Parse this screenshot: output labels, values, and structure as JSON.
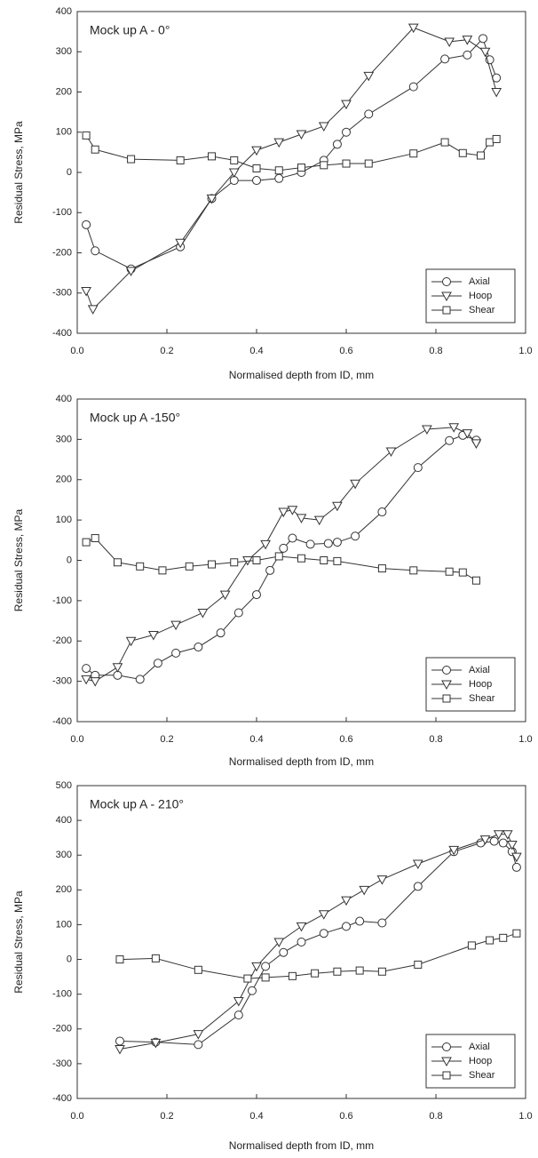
{
  "chart_data": [
    {
      "type": "line",
      "title": "Mock up A - 0°",
      "xlabel": "Normalised depth from ID, mm",
      "ylabel": "Residual Stress, MPa",
      "xlim": [
        0,
        1
      ],
      "ylim": [
        -400,
        400
      ],
      "xticks": [
        {
          "value": 0,
          "label": "0.0"
        },
        {
          "value": 0.2,
          "label": "0.2"
        },
        {
          "value": 0.4,
          "label": "0.4"
        },
        {
          "value": 0.6,
          "label": "0.6"
        },
        {
          "value": 0.8,
          "label": "0.8"
        },
        {
          "value": 1,
          "label": "1.0"
        }
      ],
      "yticks": [
        -400,
        -300,
        -200,
        -100,
        0,
        100,
        200,
        300,
        400
      ],
      "legend": "lower right",
      "series": [
        {
          "name": "Axial",
          "marker": "circle",
          "color": "#333",
          "x": [
            0.02,
            0.04,
            0.12,
            0.23,
            0.3,
            0.35,
            0.4,
            0.45,
            0.5,
            0.55,
            0.58,
            0.6,
            0.65,
            0.75,
            0.82,
            0.87,
            0.905,
            0.92,
            0.935
          ],
          "values": [
            -130,
            -195,
            -240,
            -185,
            -65,
            -20,
            -20,
            -15,
            0,
            30,
            70,
            100,
            145,
            213,
            282,
            292,
            333,
            280,
            235
          ]
        },
        {
          "name": "Hoop",
          "marker": "triangle-down",
          "color": "#333",
          "x": [
            0.02,
            0.035,
            0.12,
            0.23,
            0.3,
            0.35,
            0.4,
            0.45,
            0.5,
            0.55,
            0.6,
            0.65,
            0.75,
            0.83,
            0.87,
            0.91,
            0.935
          ],
          "values": [
            -295,
            -340,
            -245,
            -175,
            -65,
            0,
            55,
            75,
            95,
            115,
            170,
            240,
            360,
            325,
            330,
            300,
            200
          ]
        },
        {
          "name": "Shear",
          "marker": "square",
          "color": "#333",
          "x": [
            0.02,
            0.04,
            0.12,
            0.23,
            0.3,
            0.35,
            0.4,
            0.45,
            0.5,
            0.55,
            0.6,
            0.65,
            0.75,
            0.82,
            0.86,
            0.9,
            0.92,
            0.935
          ],
          "values": [
            92,
            57,
            33,
            30,
            40,
            30,
            10,
            5,
            12,
            18,
            22,
            22,
            47,
            75,
            48,
            42,
            75,
            83
          ]
        }
      ]
    },
    {
      "type": "line",
      "title": "Mock up A -150°",
      "xlabel": "Normalised depth from ID, mm",
      "ylabel": "Residual Stress, MPa",
      "xlim": [
        0,
        1
      ],
      "ylim": [
        -400,
        400
      ],
      "xticks": [
        {
          "value": 0,
          "label": "0.0"
        },
        {
          "value": 0.2,
          "label": "0.2"
        },
        {
          "value": 0.4,
          "label": "0.4"
        },
        {
          "value": 0.6,
          "label": "0.6"
        },
        {
          "value": 0.8,
          "label": "0.8"
        },
        {
          "value": 1,
          "label": "1.0"
        }
      ],
      "yticks": [
        -400,
        -300,
        -200,
        -100,
        0,
        100,
        200,
        300,
        400
      ],
      "legend": "lower right",
      "series": [
        {
          "name": "Axial",
          "marker": "circle",
          "color": "#333",
          "x": [
            0.02,
            0.04,
            0.09,
            0.14,
            0.18,
            0.22,
            0.27,
            0.32,
            0.36,
            0.4,
            0.43,
            0.46,
            0.48,
            0.52,
            0.56,
            0.58,
            0.62,
            0.68,
            0.76,
            0.83,
            0.86,
            0.89
          ],
          "values": [
            -268,
            -285,
            -285,
            -295,
            -255,
            -230,
            -215,
            -180,
            -130,
            -85,
            -25,
            30,
            55,
            40,
            42,
            45,
            60,
            120,
            230,
            297,
            310,
            298
          ]
        },
        {
          "name": "Hoop",
          "marker": "triangle-down",
          "color": "#333",
          "x": [
            0.02,
            0.04,
            0.09,
            0.12,
            0.17,
            0.22,
            0.28,
            0.33,
            0.38,
            0.42,
            0.46,
            0.48,
            0.5,
            0.54,
            0.58,
            0.62,
            0.7,
            0.78,
            0.84,
            0.87,
            0.89
          ],
          "values": [
            -295,
            -300,
            -265,
            -200,
            -185,
            -160,
            -130,
            -85,
            0,
            40,
            120,
            125,
            105,
            100,
            135,
            190,
            270,
            325,
            330,
            315,
            290
          ]
        },
        {
          "name": "Shear",
          "marker": "square",
          "color": "#333",
          "x": [
            0.02,
            0.04,
            0.09,
            0.14,
            0.19,
            0.25,
            0.3,
            0.35,
            0.4,
            0.45,
            0.5,
            0.55,
            0.58,
            0.68,
            0.75,
            0.83,
            0.86,
            0.89
          ],
          "values": [
            45,
            55,
            -5,
            -15,
            -25,
            -15,
            -10,
            -5,
            0,
            10,
            5,
            0,
            -2,
            -20,
            -25,
            -28,
            -30,
            -50
          ]
        }
      ]
    },
    {
      "type": "line",
      "title": "Mock up A - 210°",
      "xlabel": "Normalised depth from ID, mm",
      "ylabel": "Residual Stress, MPa",
      "xlim": [
        0,
        1
      ],
      "ylim": [
        -400,
        500
      ],
      "xticks": [
        {
          "value": 0,
          "label": "0.0"
        },
        {
          "value": 0.2,
          "label": "0.2"
        },
        {
          "value": 0.4,
          "label": "0.4"
        },
        {
          "value": 0.6,
          "label": "0.6"
        },
        {
          "value": 0.8,
          "label": "0.8"
        },
        {
          "value": 1,
          "label": "1.0"
        }
      ],
      "yticks": [
        -400,
        -300,
        -200,
        -100,
        0,
        100,
        200,
        300,
        400,
        500
      ],
      "legend": "lower right",
      "series": [
        {
          "name": "Axial",
          "marker": "circle",
          "color": "#333",
          "x": [
            0.095,
            0.175,
            0.27,
            0.36,
            0.39,
            0.42,
            0.46,
            0.5,
            0.55,
            0.6,
            0.63,
            0.68,
            0.76,
            0.84,
            0.9,
            0.93,
            0.95,
            0.97,
            0.98
          ],
          "values": [
            -235,
            -238,
            -245,
            -160,
            -90,
            -20,
            20,
            50,
            75,
            95,
            110,
            105,
            210,
            310,
            335,
            340,
            335,
            310,
            265
          ]
        },
        {
          "name": "Hoop",
          "marker": "triangle-down",
          "color": "#333",
          "x": [
            0.095,
            0.175,
            0.27,
            0.36,
            0.4,
            0.45,
            0.5,
            0.55,
            0.6,
            0.64,
            0.68,
            0.76,
            0.84,
            0.91,
            0.94,
            0.96,
            0.97,
            0.98
          ],
          "values": [
            -258,
            -240,
            -215,
            -120,
            -20,
            50,
            95,
            130,
            170,
            200,
            230,
            275,
            315,
            345,
            360,
            360,
            330,
            295
          ]
        },
        {
          "name": "Shear",
          "marker": "square",
          "color": "#333",
          "x": [
            0.095,
            0.175,
            0.27,
            0.38,
            0.42,
            0.48,
            0.53,
            0.58,
            0.63,
            0.68,
            0.76,
            0.88,
            0.92,
            0.95,
            0.98
          ],
          "values": [
            0,
            3,
            -30,
            -55,
            -52,
            -48,
            -40,
            -35,
            -32,
            -35,
            -15,
            40,
            55,
            62,
            75
          ]
        }
      ]
    }
  ]
}
